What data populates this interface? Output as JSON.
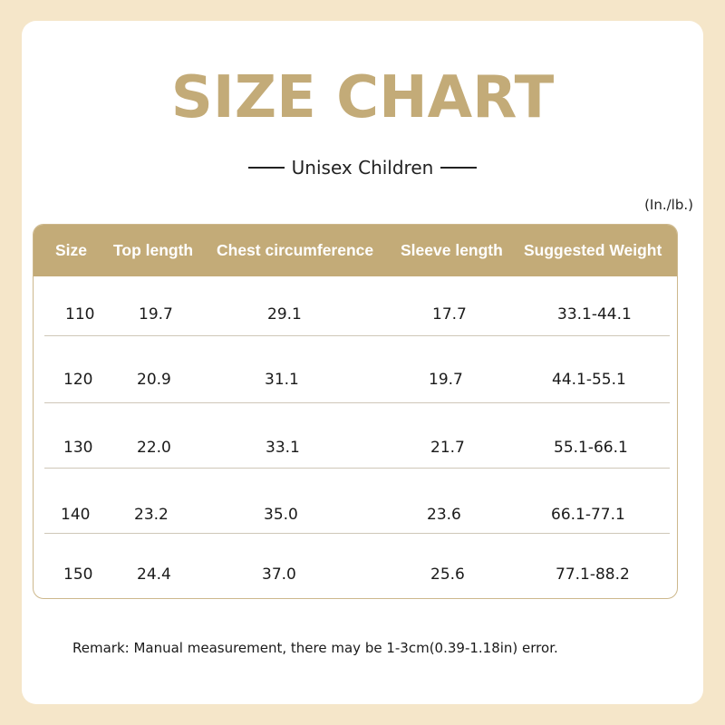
{
  "title": "SIZE CHART",
  "subtitle": "Unisex Children",
  "units": "(In./lb.)",
  "table": {
    "headers": [
      "Size",
      "Top length",
      "Chest circumference",
      "Sleeve length",
      "Suggested Weight"
    ],
    "rows": [
      [
        "110",
        "19.7",
        "29.1",
        "17.7",
        "33.1-44.1"
      ],
      [
        "120",
        "20.9",
        "31.1",
        "19.7",
        "44.1-55.1"
      ],
      [
        "130",
        "22.0",
        "33.1",
        "21.7",
        "55.1-66.1"
      ],
      [
        "140",
        "23.2",
        "35.0",
        "23.6",
        "66.1-77.1"
      ],
      [
        "150",
        "24.4",
        "37.0",
        "25.6",
        "77.1-88.2"
      ]
    ]
  },
  "remark": "Remark: Manual measurement, there may be 1-3cm(0.39-1.18in) error.",
  "colors": {
    "accent": "#c3ab78",
    "background": "#f5e6c9"
  }
}
